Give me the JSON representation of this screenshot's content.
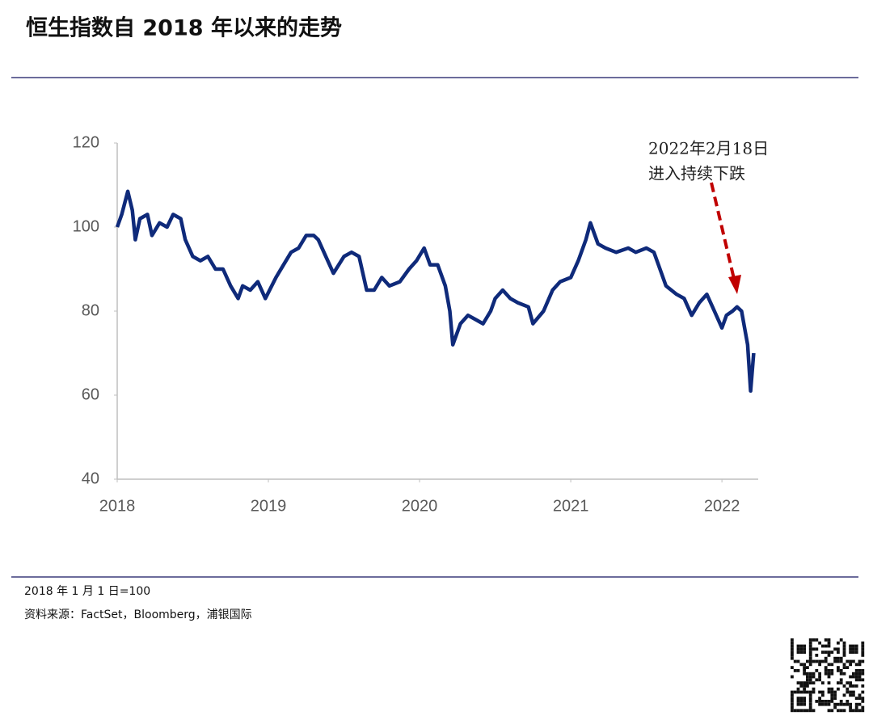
{
  "chart_data": {
    "type": "line",
    "title": "恒生指数自 2018 年以来的走势",
    "annotation": [
      "2022年2月18日",
      "进入持续下跌"
    ],
    "color": "#0f2a7a",
    "x": [
      2018.0,
      2018.03,
      2018.07,
      2018.1,
      2018.12,
      2018.15,
      2018.2,
      2018.23,
      2018.28,
      2018.33,
      2018.37,
      2018.42,
      2018.45,
      2018.5,
      2018.55,
      2018.6,
      2018.65,
      2018.7,
      2018.75,
      2018.8,
      2018.83,
      2018.88,
      2018.93,
      2018.98,
      2019.05,
      2019.1,
      2019.15,
      2019.2,
      2019.25,
      2019.3,
      2019.33,
      2019.38,
      2019.43,
      2019.5,
      2019.55,
      2019.6,
      2019.65,
      2019.7,
      2019.75,
      2019.8,
      2019.87,
      2019.93,
      2019.98,
      2020.03,
      2020.07,
      2020.12,
      2020.17,
      2020.2,
      2020.22,
      2020.27,
      2020.32,
      2020.37,
      2020.42,
      2020.47,
      2020.5,
      2020.55,
      2020.6,
      2020.65,
      2020.72,
      2020.75,
      2020.82,
      2020.88,
      2020.93,
      2021.0,
      2021.05,
      2021.1,
      2021.13,
      2021.18,
      2021.23,
      2021.3,
      2021.38,
      2021.43,
      2021.5,
      2021.55,
      2021.58,
      2021.63,
      2021.7,
      2021.75,
      2021.8,
      2021.85,
      2021.9,
      2021.95,
      2022.0,
      2022.03,
      2022.07,
      2022.1,
      2022.13,
      2022.17,
      2022.19,
      2022.21
    ],
    "values": [
      100,
      103,
      108.5,
      104,
      97,
      102,
      103,
      98,
      101,
      100,
      103,
      102,
      97,
      93,
      92,
      93,
      90,
      90,
      86,
      83,
      86,
      85,
      87,
      83,
      88,
      91,
      94,
      95,
      98,
      98,
      97,
      93,
      89,
      93,
      94,
      93,
      85,
      85,
      88,
      86,
      87,
      90,
      92,
      95,
      91,
      91,
      86,
      80,
      72,
      77,
      79,
      78,
      77,
      80,
      83,
      85,
      83,
      82,
      81,
      77,
      80,
      85,
      87,
      88,
      92,
      97,
      101,
      96,
      95,
      94,
      95,
      94,
      95,
      94,
      91,
      86,
      84,
      83,
      79,
      82,
      84,
      80,
      76,
      79,
      80,
      81,
      80,
      72,
      61,
      70
    ],
    "xlim": [
      2018,
      2022.24
    ],
    "xticks": [
      2018,
      2019,
      2020,
      2021,
      2022
    ],
    "ylim": [
      40,
      120
    ],
    "yticks": [
      40,
      60,
      80,
      100,
      120
    ]
  },
  "notes": [
    "2018 年 1 月 1 日=100",
    "资料来源：FactSet，Bloomberg，浦银国际"
  ]
}
